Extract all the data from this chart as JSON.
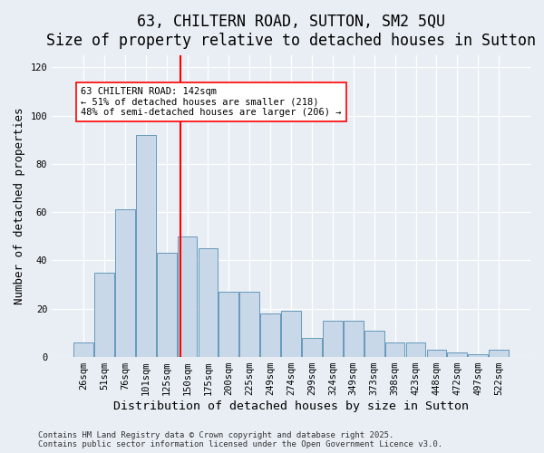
{
  "title": "63, CHILTERN ROAD, SUTTON, SM2 5QU",
  "subtitle": "Size of property relative to detached houses in Sutton",
  "xlabel": "Distribution of detached houses by size in Sutton",
  "ylabel": "Number of detached properties",
  "categories": [
    "26sqm",
    "51sqm",
    "76sqm",
    "101sqm",
    "125sqm",
    "150sqm",
    "175sqm",
    "200sqm",
    "225sqm",
    "249sqm",
    "274sqm",
    "299sqm",
    "324sqm",
    "349sqm",
    "373sqm",
    "398sqm",
    "423sqm",
    "448sqm",
    "472sqm",
    "497sqm",
    "522sqm"
  ],
  "bar_values": [
    6,
    35,
    61,
    92,
    43,
    50,
    45,
    27,
    27,
    18,
    19,
    8,
    15,
    15,
    11,
    6,
    6,
    3,
    2,
    1,
    3
  ],
  "bar_color": "#c8d8e8",
  "bar_edge_color": "#6699bb",
  "vline_color": "red",
  "annotation_text": "63 CHILTERN ROAD: 142sqm\n← 51% of detached houses are smaller (218)\n48% of semi-detached houses are larger (206) →",
  "annotation_box_color": "white",
  "annotation_box_edge_color": "red",
  "ylim": [
    0,
    125
  ],
  "yticks": [
    0,
    20,
    40,
    60,
    80,
    100,
    120
  ],
  "background_color": "#e8eef4",
  "footer": "Contains HM Land Registry data © Crown copyright and database right 2025.\nContains public sector information licensed under the Open Government Licence v3.0.",
  "title_fontsize": 12,
  "axis_fontsize": 9,
  "tick_fontsize": 7.5,
  "footer_fontsize": 6.5
}
